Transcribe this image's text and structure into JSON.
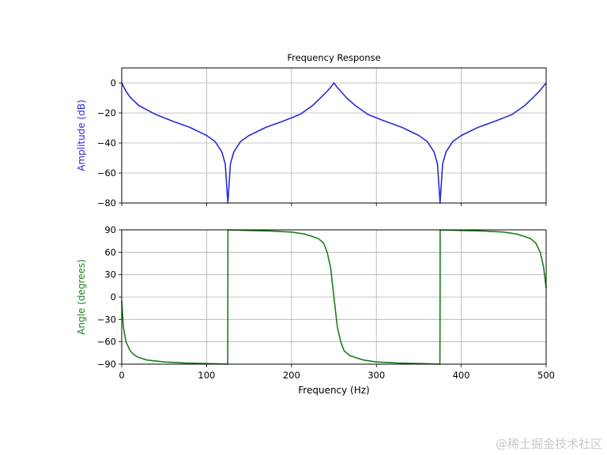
{
  "chart_data": [
    {
      "type": "line",
      "title": "Frequency Response",
      "xlabel": "",
      "ylabel": "Amplitude (dB)",
      "ylabel_color": "#2a2ad6",
      "line_color": "#2a2ad6",
      "xlim": [
        0,
        500
      ],
      "ylim": [
        -80,
        10
      ],
      "xticks": [
        0,
        100,
        200,
        300,
        400,
        500
      ],
      "yticks": [
        0,
        -20,
        -40,
        -60,
        -80
      ],
      "ytick_labels": [
        "0",
        "−20",
        "−40",
        "−60",
        "−80"
      ],
      "grid": true,
      "series": [
        {
          "name": "Amplitude",
          "x": [
            0,
            5,
            10,
            20,
            40,
            60,
            80,
            100,
            110,
            118,
            122,
            125,
            128,
            132,
            140,
            150,
            170,
            190,
            210,
            225,
            235,
            242,
            246,
            250,
            254,
            258,
            265,
            275,
            290,
            310,
            330,
            350,
            360,
            368,
            372,
            375,
            378,
            382,
            390,
            400,
            420,
            440,
            460,
            475,
            485,
            492,
            500
          ],
          "values": [
            0,
            -5.5,
            -9.5,
            -15,
            -21,
            -25.5,
            -29.5,
            -35,
            -39,
            -46,
            -54,
            -80,
            -54,
            -46,
            -39,
            -35,
            -29.5,
            -25.5,
            -21,
            -15,
            -9.5,
            -5.5,
            -3,
            0,
            -3,
            -5.5,
            -10,
            -15,
            -21,
            -25.5,
            -29.5,
            -35,
            -39,
            -46,
            -54,
            -80,
            -54,
            -46,
            -39,
            -35,
            -29.5,
            -25.5,
            -21,
            -15,
            -9.5,
            -5.5,
            0
          ]
        }
      ]
    },
    {
      "type": "line",
      "title": "",
      "xlabel": "Frequency (Hz)",
      "ylabel": "Angle (degrees)",
      "ylabel_color": "#1a7f1a",
      "line_color": "#1a7f1a",
      "xlim": [
        0,
        500
      ],
      "ylim": [
        -90,
        90
      ],
      "xticks": [
        0,
        100,
        200,
        300,
        400,
        500
      ],
      "xtick_labels": [
        "0",
        "100",
        "200",
        "300",
        "400",
        "500"
      ],
      "yticks": [
        90,
        60,
        30,
        0,
        -30,
        -60,
        -90
      ],
      "ytick_labels": [
        "90",
        "60",
        "30",
        "0",
        "−30",
        "−60",
        "−90"
      ],
      "grid": true,
      "series": [
        {
          "name": "Angle",
          "x": [
            0,
            2,
            5,
            10,
            15,
            20,
            30,
            50,
            75,
            100,
            124.9,
            125,
            125.1,
            150,
            175,
            200,
            215,
            225,
            232,
            238,
            242,
            246,
            250,
            254,
            258,
            262,
            268,
            275,
            285,
            300,
            325,
            350,
            374.9,
            375,
            375.1,
            400,
            425,
            450,
            465,
            475,
            482,
            488,
            493,
            497,
            500
          ],
          "values": [
            -5,
            -40,
            -60,
            -72,
            -78,
            -81,
            -84.5,
            -87,
            -88.5,
            -89.2,
            -90,
            0,
            90,
            89.2,
            88.5,
            87,
            84.5,
            81,
            78,
            72,
            60,
            40,
            0,
            -40,
            -60,
            -72,
            -78,
            -81,
            -84.5,
            -87,
            -88.5,
            -89.2,
            -90,
            0,
            90,
            89.2,
            88.5,
            87,
            84.5,
            81,
            78,
            72,
            60,
            40,
            12
          ]
        }
      ]
    }
  ],
  "watermark": "@稀土掘金技术社区"
}
